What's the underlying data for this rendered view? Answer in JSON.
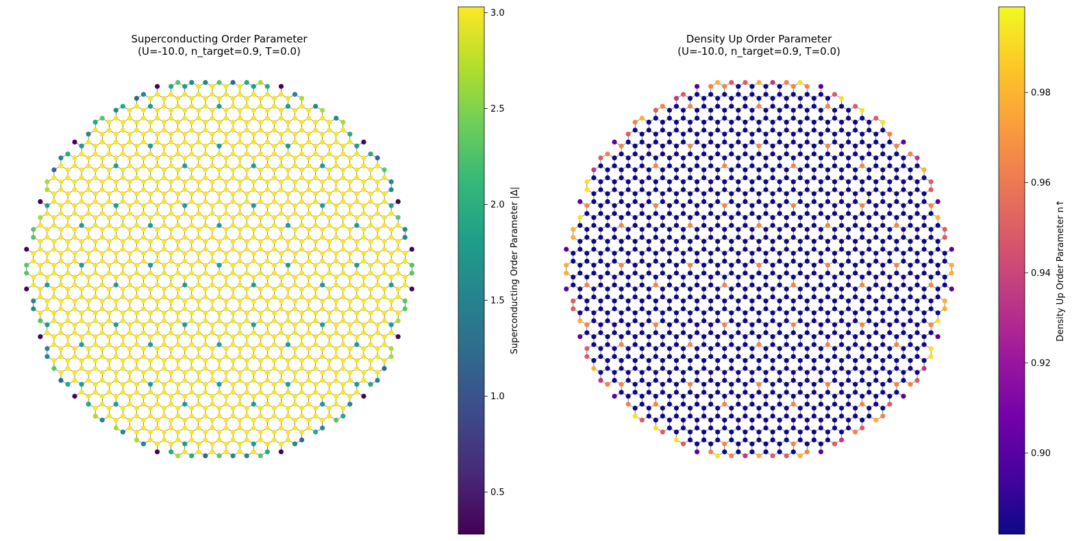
{
  "chart_data": [
    {
      "type": "scatter",
      "title_line1": "Superconducting Order Parameter",
      "title_line2": "(U=-10.0, n_target=0.9, T=0.0)",
      "lattice": "honeycomb",
      "region_shape": "disk",
      "bulk_value": 3.0,
      "defect_value": 1.8,
      "edge_value_range": [
        0.3,
        2.8
      ],
      "colorbar": {
        "label": "Superconducting Order Parameter |Δ|",
        "colormap": "viridis",
        "range": [
          0.28,
          3.03
        ],
        "ticks": [
          0.5,
          1.0,
          1.5,
          2.0,
          2.5,
          3.0
        ],
        "tick_labels": [
          "0.5",
          "1.0",
          "1.5",
          "2.0",
          "2.5",
          "3.0"
        ]
      },
      "colormap_stops": [
        "#440154",
        "#482878",
        "#3e4989",
        "#31688e",
        "#26828e",
        "#1f9e89",
        "#35b779",
        "#6ece58",
        "#b5de2b",
        "#fde725"
      ]
    },
    {
      "type": "scatter",
      "title_line1": "Density Up Order Parameter",
      "title_line2": "(U=-10.0, n_target=0.9, T=0.0)",
      "lattice": "honeycomb",
      "region_shape": "disk",
      "bulk_value": 0.882,
      "defect_value": 0.965,
      "edge_value_range": [
        0.9,
        0.998
      ],
      "colorbar": {
        "label": "Density Up Order Parameter n↑",
        "colormap": "plasma",
        "range": [
          0.882,
          0.999
        ],
        "ticks": [
          0.9,
          0.92,
          0.94,
          0.96,
          0.98
        ],
        "tick_labels": [
          "0.90",
          "0.92",
          "0.94",
          "0.96",
          "0.98"
        ]
      },
      "colormap_stops": [
        "#0d0887",
        "#47039f",
        "#7301a8",
        "#9c179e",
        "#bd3786",
        "#d8576b",
        "#ed7953",
        "#fa9e3b",
        "#fdc926",
        "#f0f921"
      ]
    }
  ]
}
